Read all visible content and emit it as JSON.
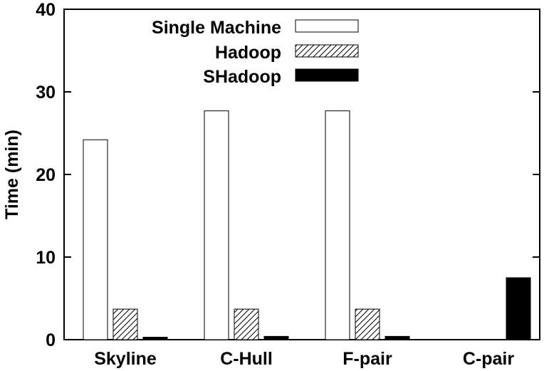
{
  "chart_data": {
    "type": "bar",
    "title": "",
    "xlabel": "",
    "ylabel": "Time (min)",
    "ylim": [
      0,
      40
    ],
    "yticks": [
      0,
      10,
      20,
      30,
      40
    ],
    "grid": false,
    "legend_position": "top-right",
    "categories": [
      "Skyline",
      "C-Hull",
      "F-pair",
      "C-pair"
    ],
    "series": [
      {
        "name": "Single Machine",
        "pattern": "white",
        "values": [
          24.2,
          27.7,
          27.7,
          0
        ]
      },
      {
        "name": "Hadoop",
        "pattern": "hatch",
        "values": [
          3.7,
          3.7,
          3.7,
          0
        ]
      },
      {
        "name": "SHadoop",
        "pattern": "black",
        "values": [
          0.3,
          0.4,
          0.4,
          7.5
        ]
      }
    ]
  }
}
